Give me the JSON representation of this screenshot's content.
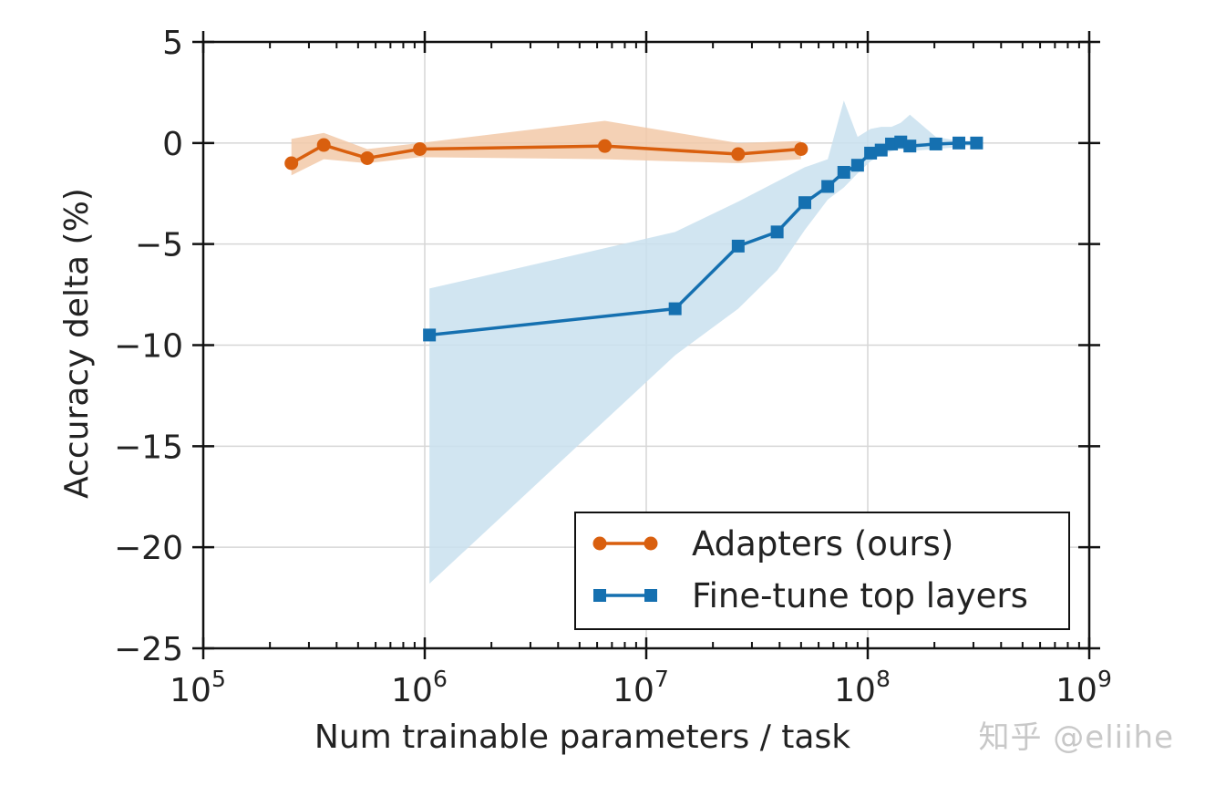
{
  "chart_data": {
    "type": "line",
    "xlabel": "Num trainable parameters / task",
    "ylabel": "Accuracy delta (%)",
    "xscale": "log",
    "xlim": [
      100000,
      1000000000
    ],
    "ylim": [
      -25,
      5
    ],
    "x_tick_labels": [
      {
        "base": "10",
        "exp": "5",
        "value": 100000
      },
      {
        "base": "10",
        "exp": "6",
        "value": 1000000
      },
      {
        "base": "10",
        "exp": "7",
        "value": 10000000
      },
      {
        "base": "10",
        "exp": "8",
        "value": 100000000
      },
      {
        "base": "10",
        "exp": "9",
        "value": 1000000000
      }
    ],
    "y_tick_labels": [
      {
        "label": "5",
        "value": 5
      },
      {
        "label": "0",
        "value": 0
      },
      {
        "label": "−5",
        "value": -5
      },
      {
        "label": "−10",
        "value": -10
      },
      {
        "label": "−15",
        "value": -15
      },
      {
        "label": "−20",
        "value": -20
      },
      {
        "label": "−25",
        "value": -25
      }
    ],
    "grid": true,
    "legend_position": "bottom-right",
    "series": [
      {
        "name": "Adapters (ours)",
        "color": "#d95f0e",
        "band_color": "#f2c9a8",
        "marker": "circle",
        "x": [
          250000,
          350000,
          550000,
          950000,
          6500000,
          26000000,
          50000000
        ],
        "y": [
          -1.0,
          -0.1,
          -0.75,
          -0.3,
          -0.15,
          -0.55,
          -0.3
        ],
        "band_lower": [
          -1.6,
          -0.8,
          -1.0,
          -0.7,
          -0.8,
          -1.0,
          -0.8
        ],
        "band_upper": [
          0.2,
          0.5,
          -0.3,
          0.0,
          1.1,
          0.0,
          0.1
        ]
      },
      {
        "name": "Fine-tune top layers",
        "color": "#1570b0",
        "band_color": "#c9e1ef",
        "marker": "square",
        "x": [
          1050000,
          13500000,
          26000000,
          39000000,
          52000000,
          66000000,
          78000000,
          90000000,
          103000000,
          115000000,
          128000000,
          141000000,
          155000000,
          203000000,
          258000000,
          310000000
        ],
        "y": [
          -9.5,
          -8.2,
          -5.1,
          -4.4,
          -2.95,
          -2.15,
          -1.45,
          -1.1,
          -0.5,
          -0.35,
          -0.05,
          0.05,
          -0.15,
          -0.05,
          0.0,
          0.0
        ],
        "band_lower": [
          -21.8,
          -10.5,
          -8.2,
          -6.3,
          -4.3,
          -2.8,
          -2.2,
          -1.5,
          -0.9,
          -0.6,
          -0.4,
          -0.3,
          -0.4,
          -0.3,
          -0.2,
          -0.1
        ],
        "band_upper": [
          -7.2,
          -4.4,
          -2.9,
          -1.9,
          -1.2,
          -0.8,
          2.1,
          0.3,
          0.7,
          0.8,
          0.8,
          1.0,
          1.4,
          0.3,
          0.1,
          0.1
        ]
      }
    ]
  },
  "watermark": "知乎 @eliihe"
}
